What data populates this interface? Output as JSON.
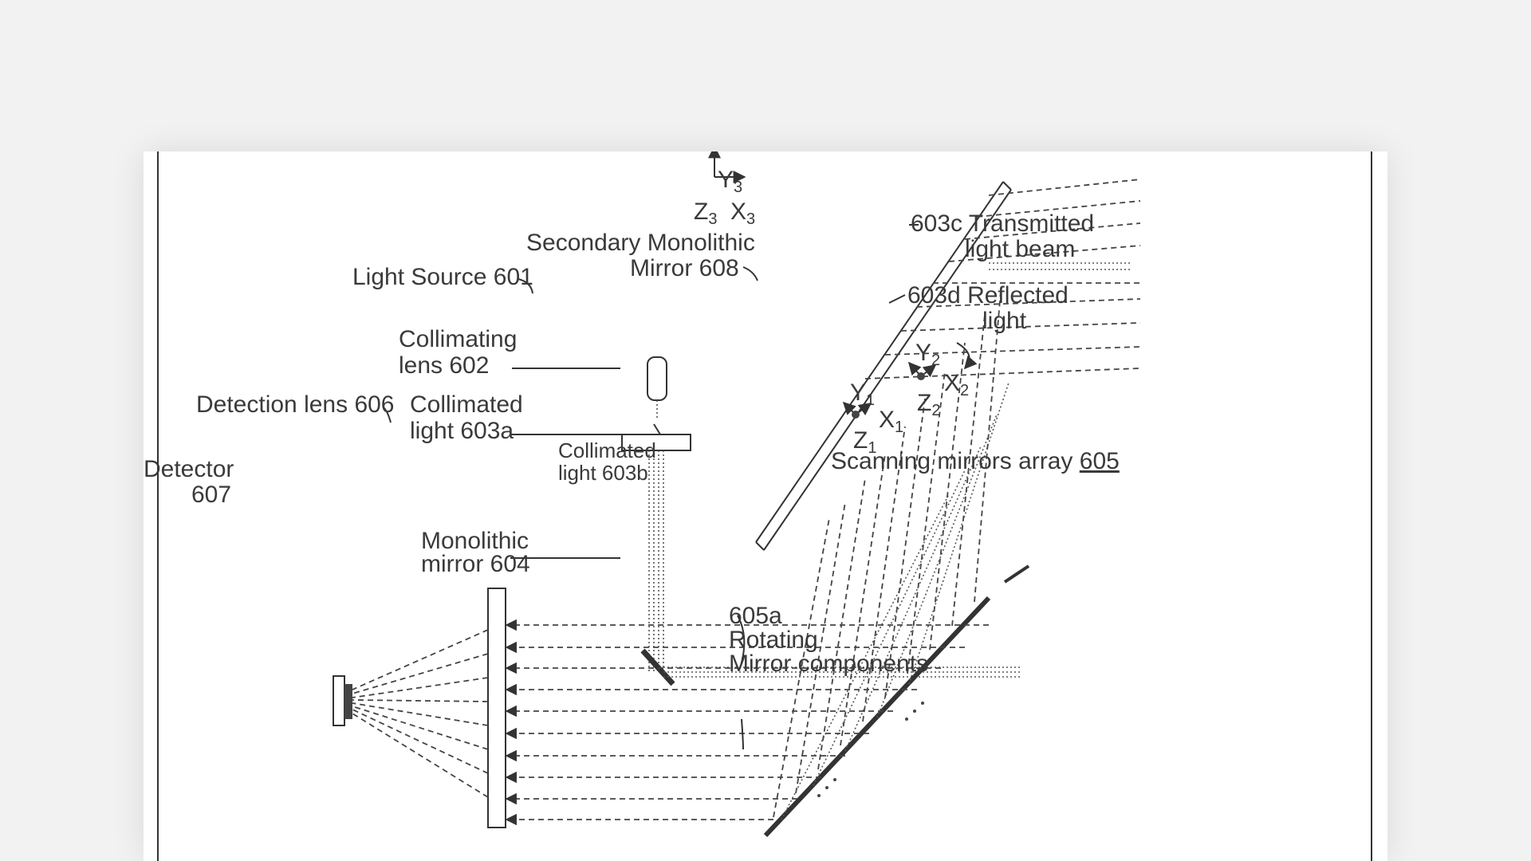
{
  "labels": {
    "light_source": "Light Source 601",
    "collimating_lens_line1": "Collimating",
    "collimating_lens_line2": "lens 602",
    "detection_lens": "Detection lens 606",
    "collimated_603a_line1": "Collimated",
    "collimated_603a_line2": "light 603a",
    "collimated_603b_line1": "Collimated",
    "collimated_603b_line2": "light 603b",
    "detector_line1": "Detector",
    "detector_line2": "607",
    "monolithic_line1": "Monolithic",
    "monolithic_line2": "mirror 604",
    "secondary_line1": "Secondary Monolithic",
    "secondary_line2": "Mirror  608",
    "transmitted_line1": "603c Transmitted",
    "transmitted_line2": "light beam",
    "reflected_line1": "603d Reflected",
    "reflected_line2": "light",
    "scanning_array_text": "Scanning mirrors array ",
    "scanning_array_number": "605",
    "rotating_line1": "605a",
    "rotating_line2": "Rotating",
    "rotating_line3": "Mirror components"
  },
  "axes": {
    "y3": "Y",
    "y3_sub": "3",
    "z3": "Z",
    "z3_sub": "3",
    "x3": "X",
    "x3_sub": "3",
    "y2": "Y",
    "y2_sub": "2",
    "x2": "X",
    "x2_sub": "2",
    "z2": "Z",
    "z2_sub": "2",
    "y1": "Y",
    "y1_sub": "1",
    "x1": "X",
    "x1_sub": "1",
    "z1": "Z",
    "z1_sub": "1"
  }
}
